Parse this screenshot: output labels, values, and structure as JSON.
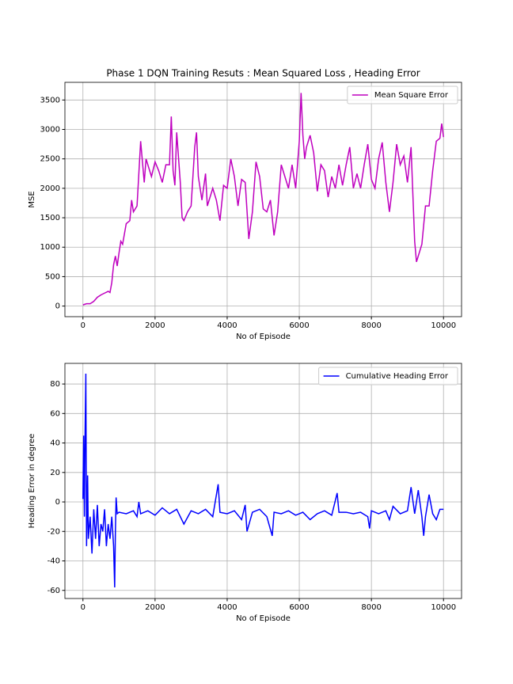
{
  "chart_data": [
    {
      "type": "line",
      "title": "Phase 1 DQN Training Resuts : Mean Squared Loss , Heading Error",
      "x_label": "No of Episode",
      "y_label": "MSE",
      "x": [
        0,
        100,
        200,
        300,
        400,
        500,
        600,
        700,
        750,
        800,
        850,
        900,
        950,
        1000,
        1050,
        1100,
        1200,
        1300,
        1350,
        1400,
        1500,
        1600,
        1700,
        1750,
        1800,
        1900,
        2000,
        2100,
        2200,
        2300,
        2400,
        2450,
        2500,
        2550,
        2600,
        2700,
        2750,
        2800,
        2900,
        3000,
        3100,
        3150,
        3200,
        3300,
        3400,
        3450,
        3600,
        3700,
        3800,
        3900,
        4000,
        4100,
        4200,
        4300,
        4400,
        4500,
        4600,
        4700,
        4800,
        4900,
        5000,
        5100,
        5200,
        5300,
        5400,
        5500,
        5600,
        5700,
        5800,
        5900,
        6000,
        6050,
        6100,
        6150,
        6200,
        6300,
        6400,
        6500,
        6600,
        6700,
        6800,
        6900,
        7000,
        7100,
        7200,
        7300,
        7400,
        7500,
        7600,
        7700,
        7800,
        7900,
        8000,
        8100,
        8200,
        8300,
        8400,
        8500,
        8600,
        8700,
        8800,
        8900,
        9000,
        9100,
        9200,
        9250,
        9300,
        9400,
        9500,
        9600,
        9700,
        9800,
        9900,
        9950,
        10000
      ],
      "series": [
        {
          "name": "Mean Square Error",
          "color": "#bf00bf",
          "values": [
            20,
            40,
            40,
            80,
            150,
            190,
            220,
            250,
            230,
            400,
            700,
            850,
            680,
            900,
            1100,
            1050,
            1400,
            1450,
            1800,
            1600,
            1700,
            2800,
            2100,
            2500,
            2400,
            2200,
            2450,
            2300,
            2100,
            2400,
            2400,
            3220,
            2300,
            2050,
            2950,
            2100,
            1500,
            1450,
            1600,
            1700,
            2700,
            2950,
            2200,
            1800,
            2250,
            1700,
            2000,
            1800,
            1450,
            2050,
            2000,
            2500,
            2200,
            1700,
            2150,
            2100,
            1140,
            1600,
            2450,
            2200,
            1650,
            1600,
            1800,
            1200,
            1600,
            2400,
            2200,
            2000,
            2400,
            2000,
            2800,
            3620,
            2900,
            2500,
            2700,
            2900,
            2600,
            1950,
            2400,
            2300,
            1850,
            2200,
            2000,
            2400,
            2050,
            2400,
            2700,
            2000,
            2250,
            2000,
            2400,
            2750,
            2150,
            2000,
            2500,
            2780,
            2100,
            1600,
            2100,
            2750,
            2400,
            2550,
            2100,
            2700,
            1100,
            750,
            850,
            1050,
            1700,
            1700,
            2300,
            2800,
            2850,
            3100,
            2870
          ]
        }
      ],
      "xlim": [
        -500,
        10500
      ],
      "xticks": [
        0,
        2000,
        4000,
        6000,
        8000,
        10000
      ],
      "ylim": [
        -180,
        3800
      ],
      "yticks": [
        0,
        500,
        1000,
        1500,
        2000,
        2500,
        3000,
        3500
      ],
      "grid": true,
      "legend": "upper right"
    },
    {
      "type": "line",
      "x_label": "No of Episode",
      "y_label": "Heading Error in degree",
      "x": [
        0,
        20,
        40,
        60,
        80,
        100,
        130,
        150,
        200,
        250,
        300,
        350,
        400,
        450,
        500,
        550,
        600,
        650,
        700,
        750,
        800,
        850,
        880,
        900,
        920,
        950,
        1000,
        1200,
        1400,
        1500,
        1550,
        1600,
        1800,
        2000,
        2200,
        2400,
        2600,
        2800,
        3000,
        3200,
        3400,
        3600,
        3750,
        3800,
        4000,
        4200,
        4400,
        4500,
        4550,
        4700,
        4900,
        5100,
        5250,
        5300,
        5500,
        5700,
        5900,
        6100,
        6300,
        6500,
        6700,
        6900,
        7050,
        7100,
        7300,
        7500,
        7700,
        7900,
        7950,
        8000,
        8200,
        8400,
        8500,
        8600,
        8800,
        9000,
        9100,
        9200,
        9300,
        9400,
        9450,
        9500,
        9600,
        9700,
        9800,
        9900,
        10000
      ],
      "series": [
        {
          "name": "Cumulative Heading Error",
          "color": "#0000ff",
          "values": [
            2,
            45,
            -10,
            48,
            87,
            -30,
            18,
            -25,
            -10,
            -35,
            -5,
            -25,
            -2,
            -30,
            -15,
            -20,
            -5,
            -30,
            -15,
            -25,
            -10,
            -30,
            -58,
            -20,
            3,
            -8,
            -7,
            -8,
            -6,
            -10,
            0,
            -8,
            -6,
            -9,
            -4,
            -8,
            -5,
            -15,
            -6,
            -8,
            -5,
            -10,
            12,
            -7,
            -8,
            -6,
            -12,
            -2,
            -20,
            -7,
            -5,
            -10,
            -23,
            -7,
            -8,
            -6,
            -9,
            -7,
            -12,
            -8,
            -6,
            -9,
            6,
            -7,
            -7,
            -8,
            -7,
            -10,
            -18,
            -6,
            -8,
            -6,
            -12,
            -3,
            -8,
            -6,
            10,
            -8,
            8,
            -10,
            -23,
            -10,
            5,
            -8,
            -12,
            -5,
            -5
          ]
        }
      ],
      "xlim": [
        -500,
        10500
      ],
      "xticks": [
        0,
        2000,
        4000,
        6000,
        8000,
        10000
      ],
      "ylim": [
        -65.5,
        94
      ],
      "yticks": [
        -60,
        -40,
        -20,
        0,
        20,
        40,
        60,
        80
      ],
      "grid": true,
      "legend": "upper right"
    }
  ]
}
